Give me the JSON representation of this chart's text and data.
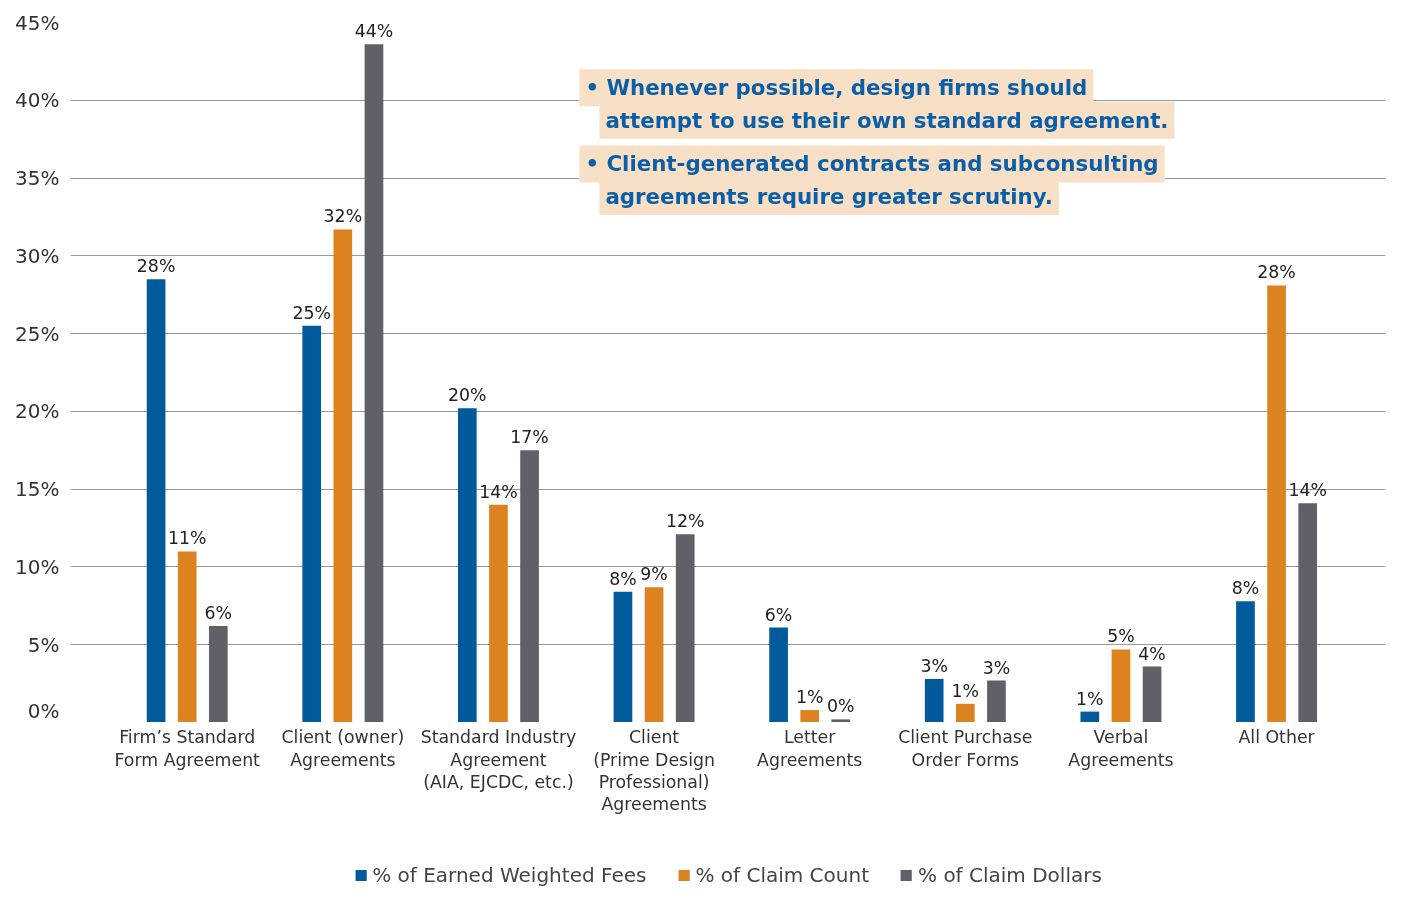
{
  "chart_data": {
    "type": "bar",
    "categories": [
      "Firm’s Standard\nForm Agreement",
      "Client (owner)\nAgreements",
      "Standard Industry\nAgreement\n(AIA, EJCDC, etc.)",
      "Client\n(Prime Design\nProfessional)\nAgreements",
      "Letter\nAgreements",
      "Client Purchase\nOrder Forms",
      "Verbal\nAgreements",
      "All Other"
    ],
    "series": [
      {
        "name": "% of Earned Weighted Fees",
        "color": "#005a9c",
        "values": [
          28.5,
          25.5,
          20.2,
          8.4,
          6.1,
          2.8,
          0.7,
          7.8
        ],
        "value_labels": [
          "28%",
          "25%",
          "20%",
          "8%",
          "6%",
          "3%",
          "1%",
          "8%"
        ]
      },
      {
        "name": "% of Claim Count",
        "color": "#dc8320",
        "values": [
          11.0,
          31.7,
          14.0,
          8.7,
          0.8,
          1.2,
          4.7,
          28.1
        ],
        "value_labels": [
          "11%",
          "32%",
          "14%",
          "9%",
          "1%",
          "1%",
          "5%",
          "28%"
        ]
      },
      {
        "name": "% of Claim Dollars",
        "color": "#5f6068",
        "values": [
          6.2,
          43.6,
          17.5,
          12.1,
          0.2,
          2.7,
          3.6,
          14.1
        ],
        "value_labels": [
          "6%",
          "44%",
          "17%",
          "12%",
          "0%",
          "3%",
          "4%",
          "14%"
        ]
      }
    ],
    "ylim": [
      0,
      45
    ],
    "yticks": [
      {
        "value": 0,
        "label": "0%"
      },
      {
        "value": 5,
        "label": "5%"
      },
      {
        "value": 10,
        "label": "10%"
      },
      {
        "value": 15,
        "label": "15%"
      },
      {
        "value": 20,
        "label": "20%"
      },
      {
        "value": 25,
        "label": "25%"
      },
      {
        "value": 30,
        "label": "30%"
      },
      {
        "value": 35,
        "label": "35%"
      },
      {
        "value": 40,
        "label": "40%"
      },
      {
        "value": 45,
        "label": "45%"
      }
    ],
    "annotations": [
      "• Whenever possible, design firms should\nattempt to use their own standard agreement.",
      "• Client-generated contracts and subconsulting\nagreements require greater scrutiny."
    ],
    "grid": "y",
    "legend": "bottom"
  }
}
